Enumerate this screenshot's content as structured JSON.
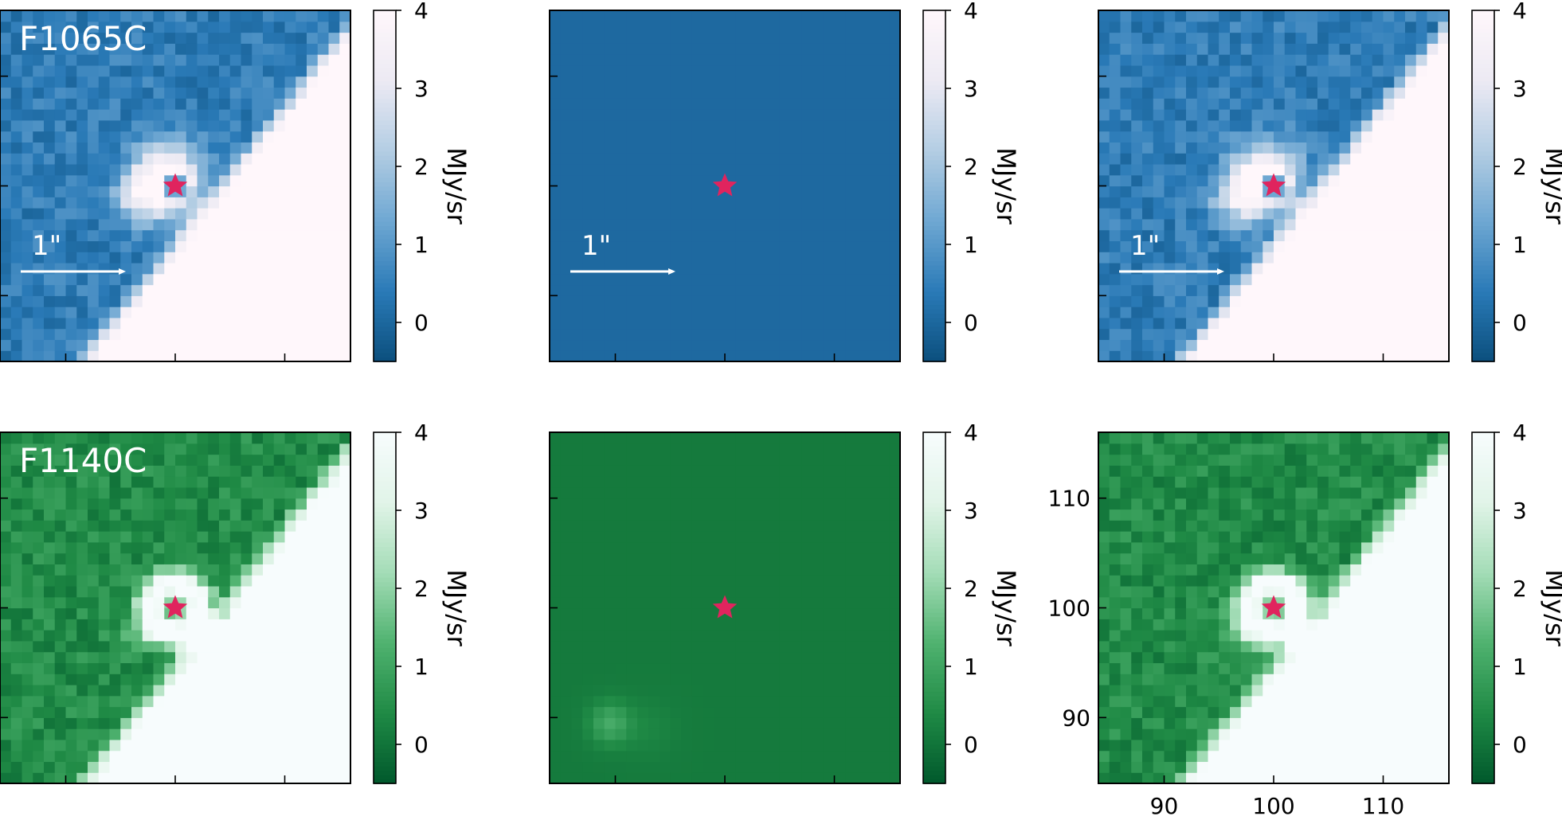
{
  "colors": {
    "blue_cmap": [
      "#0b4f7d",
      "#2a7ab7",
      "#6ea7d2",
      "#b3cde3",
      "#eceaf3",
      "#fff7fb"
    ],
    "green_cmap": [
      "#00582c",
      "#1f8a45",
      "#4fb26f",
      "#a3dcb6",
      "#e1f4e8",
      "#f7fcfd"
    ],
    "star": "#e0245e",
    "scalebar": "#ffffff"
  },
  "chart_data": [
    {
      "type": "heatmap",
      "row": 0,
      "col": 0,
      "cmap": "blue",
      "filter_label": "F1065C",
      "scalebar_label": "1\"",
      "colorbar_label": "MJy/sr",
      "clim": [
        -0.5,
        4
      ],
      "colorbar_ticks": [
        0,
        1,
        2,
        3,
        4
      ],
      "xlim": [
        84,
        116
      ],
      "ylim": [
        84,
        116
      ],
      "x_ticks": [
        90,
        100,
        110
      ],
      "y_ticks": [
        90,
        100,
        110
      ],
      "show_x_labels": false,
      "show_y_labels": false,
      "star": [
        100,
        100
      ],
      "content": "source+background"
    },
    {
      "type": "heatmap",
      "row": 0,
      "col": 1,
      "cmap": "blue",
      "filter_label": "",
      "scalebar_label": "1\"",
      "colorbar_label": "MJy/sr",
      "clim": [
        -0.5,
        4
      ],
      "colorbar_ticks": [
        0,
        1,
        2,
        3,
        4
      ],
      "xlim": [
        84,
        116
      ],
      "ylim": [
        84,
        116
      ],
      "x_ticks": [
        90,
        100,
        110
      ],
      "y_ticks": [
        90,
        100,
        110
      ],
      "show_x_labels": false,
      "show_y_labels": false,
      "star": [
        100,
        100
      ],
      "content": "empty"
    },
    {
      "type": "heatmap",
      "row": 0,
      "col": 2,
      "cmap": "blue",
      "filter_label": "",
      "scalebar_label": "1\"",
      "colorbar_label": "MJy/sr",
      "clim": [
        -0.5,
        4
      ],
      "colorbar_ticks": [
        0,
        1,
        2,
        3,
        4
      ],
      "xlim": [
        84,
        116
      ],
      "ylim": [
        84,
        116
      ],
      "x_ticks": [
        90,
        100,
        110
      ],
      "y_ticks": [
        90,
        100,
        110
      ],
      "show_x_labels": false,
      "show_y_labels": false,
      "star": [
        100,
        100
      ],
      "content": "source+background"
    },
    {
      "type": "heatmap",
      "row": 1,
      "col": 0,
      "cmap": "green",
      "filter_label": "F1140C",
      "scalebar_label": "",
      "colorbar_label": "MJy/sr",
      "clim": [
        -0.5,
        4
      ],
      "colorbar_ticks": [
        0,
        1,
        2,
        3,
        4
      ],
      "xlim": [
        84,
        116
      ],
      "ylim": [
        84,
        116
      ],
      "x_ticks": [
        90,
        100,
        110
      ],
      "y_ticks": [
        90,
        100,
        110
      ],
      "show_x_labels": false,
      "show_y_labels": false,
      "star": [
        100,
        100
      ],
      "content": "ring+background"
    },
    {
      "type": "heatmap",
      "row": 1,
      "col": 1,
      "cmap": "green",
      "filter_label": "",
      "scalebar_label": "",
      "colorbar_label": "MJy/sr",
      "clim": [
        -0.5,
        4
      ],
      "colorbar_ticks": [
        0,
        1,
        2,
        3,
        4
      ],
      "xlim": [
        84,
        116
      ],
      "ylim": [
        84,
        116
      ],
      "x_ticks": [
        90,
        100,
        110
      ],
      "y_ticks": [
        90,
        100,
        110
      ],
      "show_x_labels": false,
      "show_y_labels": false,
      "star": [
        100,
        100
      ],
      "content": "faint-blob"
    },
    {
      "type": "heatmap",
      "row": 1,
      "col": 2,
      "cmap": "green",
      "filter_label": "",
      "scalebar_label": "",
      "colorbar_label": "MJy/sr",
      "clim": [
        -0.5,
        4
      ],
      "colorbar_ticks": [
        0,
        1,
        2,
        3,
        4
      ],
      "xlim": [
        84,
        116
      ],
      "ylim": [
        84,
        116
      ],
      "x_ticks": [
        90,
        100,
        110
      ],
      "y_ticks": [
        90,
        100,
        110
      ],
      "show_x_labels": true,
      "show_y_labels": true,
      "star": [
        100,
        100
      ],
      "content": "ring+background"
    }
  ]
}
